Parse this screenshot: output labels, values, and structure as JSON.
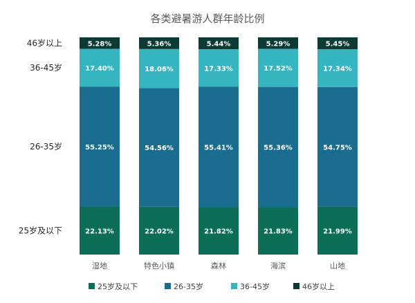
{
  "chart_data": {
    "type": "bar",
    "stacked": true,
    "title": "各类避暑游人群年龄比例",
    "categories": [
      "湿地",
      "特色小镇",
      "森林",
      "海滨",
      "山地"
    ],
    "series": [
      {
        "name": "25岁及以下",
        "color": "#0d6e57",
        "values": [
          22.13,
          22.02,
          21.82,
          21.83,
          21.99
        ],
        "labels": [
          "22.13%",
          "22.02%",
          "21.82%",
          "21.83%",
          "21.99%"
        ]
      },
      {
        "name": "26-35岁",
        "color": "#1b6d8f",
        "values": [
          55.25,
          54.56,
          55.41,
          55.36,
          54.75
        ],
        "labels": [
          "55.25%",
          "54.56%",
          "55.41%",
          "55.36%",
          "54.75%"
        ]
      },
      {
        "name": "36-45岁",
        "color": "#36b4c0",
        "values": [
          17.4,
          18.06,
          17.33,
          17.52,
          17.34
        ],
        "labels": [
          "17.40%",
          "18.06%",
          "17.33%",
          "17.52%",
          "17.34%"
        ]
      },
      {
        "name": "46岁以上",
        "color": "#0b3b34",
        "values": [
          5.28,
          5.36,
          5.44,
          5.29,
          5.45
        ],
        "labels": [
          "5.28%",
          "5.36%",
          "5.44%",
          "5.29%",
          "5.45%"
        ]
      }
    ],
    "row_labels": [
      "25岁及以下",
      "26-35岁",
      "36-45岁",
      "46岁以上"
    ],
    "ylim": [
      0,
      100
    ],
    "grid": false,
    "legend": "bottom"
  }
}
